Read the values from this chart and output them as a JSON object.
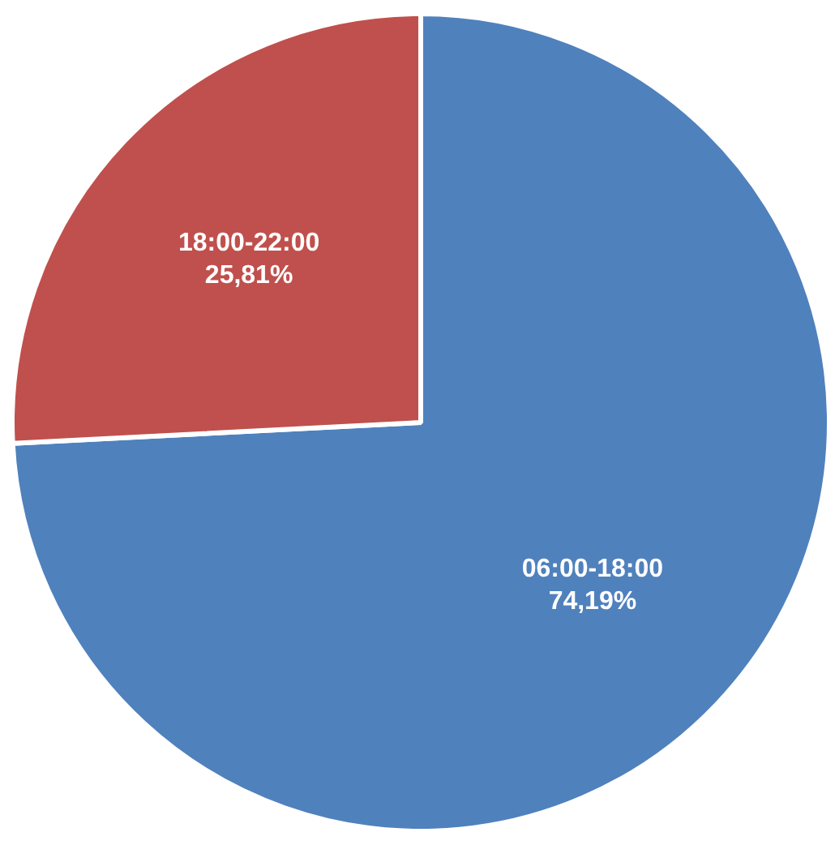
{
  "chart_data": {
    "type": "pie",
    "categories": [
      "06:00-18:00",
      "18:00-22:00"
    ],
    "values": [
      74.19,
      25.81
    ],
    "colors": [
      "#4f81bd",
      "#c0504d"
    ],
    "value_labels": [
      "74,19%",
      "25,81%"
    ]
  }
}
